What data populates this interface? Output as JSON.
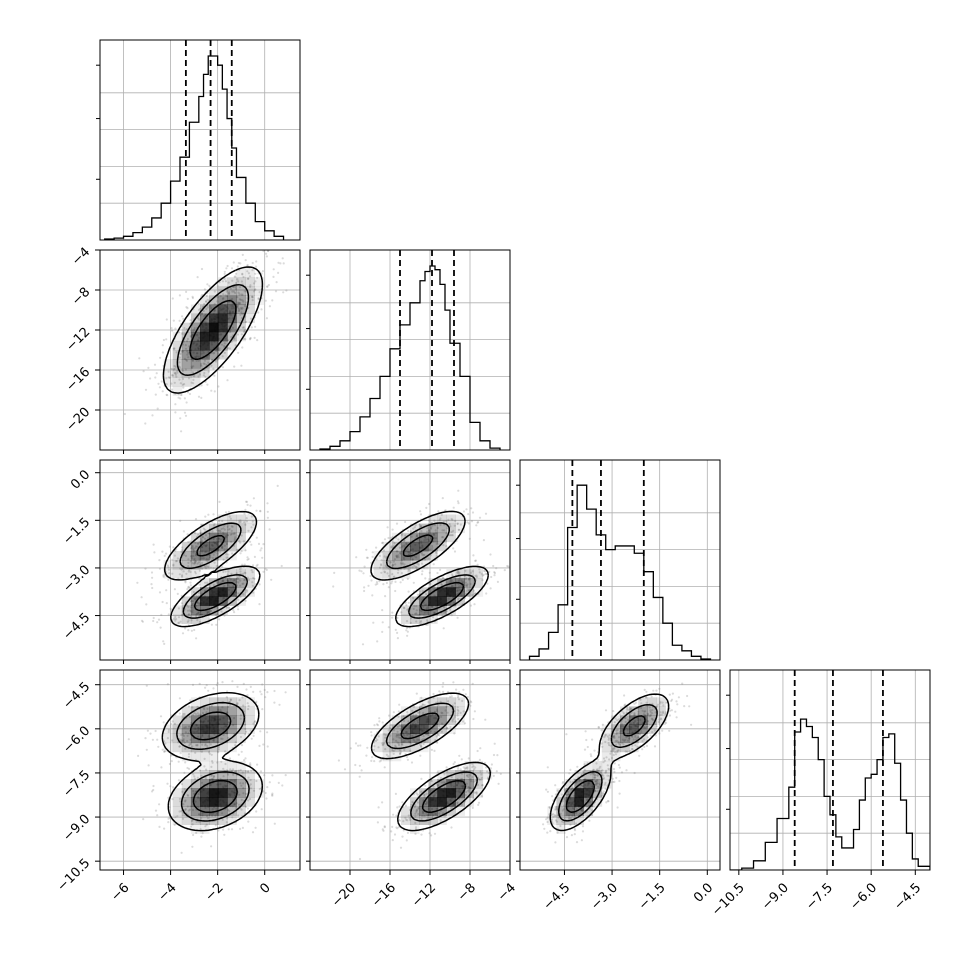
{
  "chart_data": {
    "type": "corner",
    "grid_on": true,
    "colors": {
      "line": "#000000",
      "grid": "#b0b0b0",
      "density": "#000000",
      "points": "#7f7f7f"
    },
    "params": [
      {
        "range": [
          -7,
          1.5
        ],
        "ticks": [
          -6,
          -4,
          -2,
          0
        ],
        "tick_labels": [
          "−6",
          "−4",
          "−2",
          "0"
        ]
      },
      {
        "range": [
          -24,
          -4
        ],
        "ticks": [
          -20,
          -16,
          -12,
          -8,
          -4
        ],
        "tick_labels": [
          "−20",
          "−16",
          "−12",
          "−8",
          "−4"
        ]
      },
      {
        "range": [
          -5.9,
          0.4
        ],
        "ticks": [
          -4.5,
          -3.0,
          -1.5,
          0.0
        ],
        "tick_labels": [
          "−4.5",
          "−3.0",
          "−1.5",
          "0.0"
        ]
      },
      {
        "range": [
          -10.8,
          -4.0
        ],
        "ticks": [
          -10.5,
          -9.0,
          -7.5,
          -6.0,
          -4.5
        ],
        "tick_labels": [
          "−10.5",
          "−9.0",
          "−7.5",
          "−6.0",
          "−4.5"
        ]
      }
    ],
    "y_tick_params": [
      1,
      2,
      3
    ],
    "diag": [
      {
        "bins": [
          -6.8,
          -6.4,
          -6.0,
          -5.6,
          -5.2,
          -4.8,
          -4.4,
          -4.0,
          -3.6,
          -3.2,
          -2.8,
          -2.6,
          -2.4,
          -2.2,
          -2.0,
          -1.8,
          -1.6,
          -1.4,
          -1.2,
          -0.8,
          -0.4,
          0.0,
          0.4,
          0.8
        ],
        "counts": [
          0.005,
          0.01,
          0.02,
          0.04,
          0.07,
          0.12,
          0.2,
          0.32,
          0.45,
          0.64,
          0.78,
          0.9,
          1.0,
          1.0,
          0.95,
          0.82,
          0.66,
          0.5,
          0.34,
          0.2,
          0.1,
          0.05,
          0.02
        ],
        "quantiles": [
          -3.35,
          -2.3,
          -1.4
        ]
      },
      {
        "bins": [
          -23.0,
          -22.0,
          -21.0,
          -20.0,
          -19.0,
          -18.0,
          -17.0,
          -16.0,
          -15.0,
          -14.0,
          -13.0,
          -12.5,
          -12.0,
          -11.5,
          -11.0,
          -10.5,
          -10.0,
          -9.0,
          -8.0,
          -7.0,
          -6.0,
          -5.0
        ],
        "counts": [
          0.005,
          0.02,
          0.05,
          0.1,
          0.18,
          0.28,
          0.4,
          0.55,
          0.68,
          0.8,
          0.92,
          0.97,
          1.0,
          0.98,
          0.9,
          0.76,
          0.58,
          0.4,
          0.15,
          0.05,
          0.01
        ],
        "quantiles": [
          -15.0,
          -11.8,
          -9.6
        ]
      },
      {
        "bins": [
          -5.6,
          -5.3,
          -5.0,
          -4.7,
          -4.4,
          -4.1,
          -3.8,
          -3.5,
          -3.2,
          -2.9,
          -2.6,
          -2.3,
          -2.0,
          -1.7,
          -1.4,
          -1.1,
          -0.8,
          -0.5,
          -0.2,
          0.1
        ],
        "counts": [
          0.02,
          0.06,
          0.15,
          0.3,
          0.72,
          0.95,
          0.82,
          0.68,
          0.6,
          0.62,
          0.62,
          0.58,
          0.48,
          0.34,
          0.2,
          0.08,
          0.05,
          0.02,
          0.005
        ],
        "quantiles": [
          -4.25,
          -3.35,
          -2.0
        ]
      },
      {
        "bins": [
          -10.8,
          -10.4,
          -10.0,
          -9.6,
          -9.2,
          -8.8,
          -8.6,
          -8.4,
          -8.2,
          -8.0,
          -7.8,
          -7.6,
          -7.4,
          -7.2,
          -7.0,
          -6.8,
          -6.6,
          -6.4,
          -6.2,
          -6.0,
          -5.8,
          -5.6,
          -5.4,
          -5.2,
          -5.0,
          -4.8,
          -4.6,
          -4.4,
          -4.0
        ],
        "counts": [
          0.0,
          0.01,
          0.05,
          0.15,
          0.28,
          0.45,
          0.75,
          0.82,
          0.78,
          0.72,
          0.6,
          0.4,
          0.3,
          0.18,
          0.12,
          0.12,
          0.22,
          0.38,
          0.5,
          0.52,
          0.6,
          0.72,
          0.74,
          0.58,
          0.38,
          0.2,
          0.06,
          0.02
        ],
        "quantiles": [
          -8.6,
          -7.3,
          -5.6
        ]
      }
    ],
    "joint": [
      {
        "i": 1,
        "j": 0,
        "components": [
          {
            "weight": 1.0,
            "mean": [
              -2.2,
              -12.0
            ],
            "sd": [
              1.0,
              3.0
            ],
            "rho": 0.72
          }
        ]
      },
      {
        "i": 2,
        "j": 0,
        "components": [
          {
            "weight": 0.5,
            "mean": [
              -2.3,
              -2.3
            ],
            "sd": [
              1.0,
              0.55
            ],
            "rho": 0.7
          },
          {
            "weight": 0.5,
            "mean": [
              -2.1,
              -3.9
            ],
            "sd": [
              0.9,
              0.45
            ],
            "rho": 0.7
          }
        ]
      },
      {
        "i": 2,
        "j": 1,
        "components": [
          {
            "weight": 0.5,
            "mean": [
              -13.2,
              -2.3
            ],
            "sd": [
              2.4,
              0.55
            ],
            "rho": 0.72
          },
          {
            "weight": 0.5,
            "mean": [
              -10.8,
              -3.9
            ],
            "sd": [
              2.2,
              0.45
            ],
            "rho": 0.72
          }
        ]
      },
      {
        "i": 3,
        "j": 0,
        "components": [
          {
            "weight": 0.48,
            "mean": [
              -2.3,
              -5.9
            ],
            "sd": [
              1.0,
              0.55
            ],
            "rho": 0.35
          },
          {
            "weight": 0.52,
            "mean": [
              -2.1,
              -8.3
            ],
            "sd": [
              0.95,
              0.55
            ],
            "rho": 0.3
          }
        ]
      },
      {
        "i": 3,
        "j": 1,
        "components": [
          {
            "weight": 0.48,
            "mean": [
              -13.0,
              -5.9
            ],
            "sd": [
              2.4,
              0.55
            ],
            "rho": 0.68
          },
          {
            "weight": 0.52,
            "mean": [
              -10.6,
              -8.3
            ],
            "sd": [
              2.2,
              0.55
            ],
            "rho": 0.68
          }
        ]
      },
      {
        "i": 3,
        "j": 2,
        "components": [
          {
            "weight": 0.48,
            "mean": [
              -2.3,
              -5.9
            ],
            "sd": [
              0.55,
              0.55
            ],
            "rho": 0.62
          },
          {
            "weight": 0.52,
            "mean": [
              -4.0,
              -8.3
            ],
            "sd": [
              0.45,
              0.55
            ],
            "rho": 0.62
          }
        ]
      }
    ]
  }
}
